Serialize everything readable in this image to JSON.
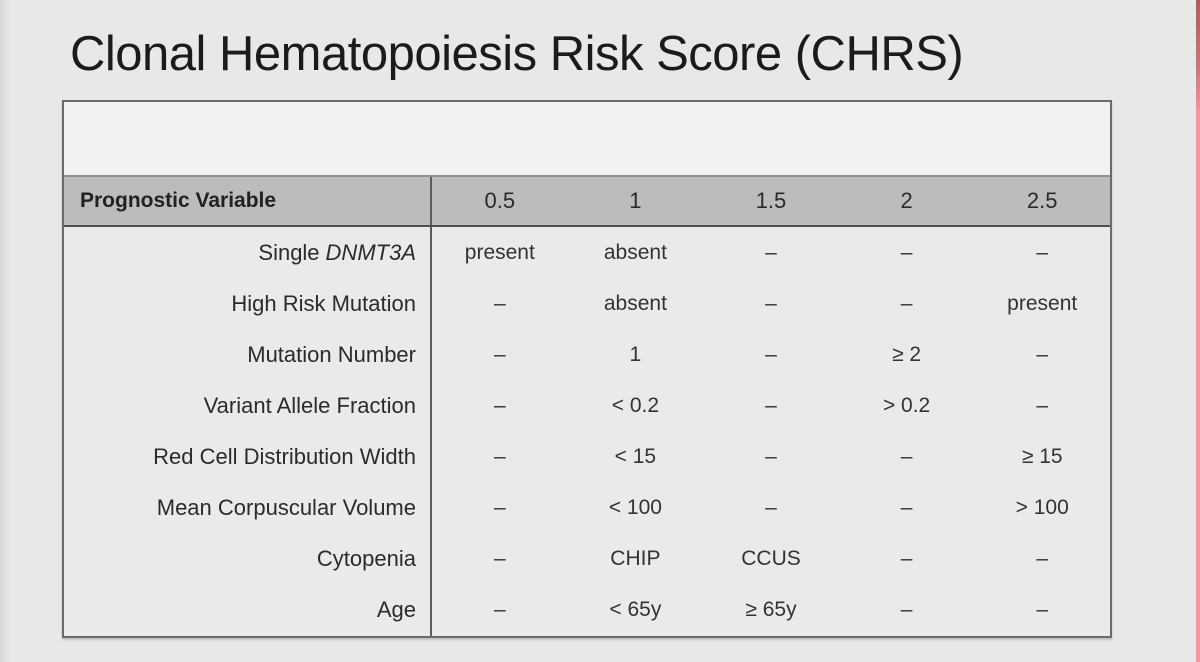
{
  "title": "Clonal Hematopoiesis Risk Score (CHRS)",
  "table": {
    "header_label": "Prognostic Variable",
    "scores": [
      "0.5",
      "1",
      "1.5",
      "2",
      "2.5"
    ],
    "rows": [
      {
        "label": "Single",
        "label_italic": "DNMT3A",
        "values": [
          "present",
          "absent",
          "–",
          "–",
          "–"
        ]
      },
      {
        "label": "High Risk Mutation",
        "label_italic": "",
        "values": [
          "–",
          "absent",
          "–",
          "–",
          "present"
        ]
      },
      {
        "label": "Mutation Number",
        "label_italic": "",
        "values": [
          "–",
          "1",
          "–",
          "≥ 2",
          "–"
        ]
      },
      {
        "label": "Variant Allele Fraction",
        "label_italic": "",
        "values": [
          "–",
          "< 0.2",
          "–",
          "> 0.2",
          "–"
        ]
      },
      {
        "label": "Red Cell Distribution Width",
        "label_italic": "",
        "values": [
          "–",
          "< 15",
          "–",
          "–",
          "≥ 15"
        ]
      },
      {
        "label": "Mean Corpuscular Volume",
        "label_italic": "",
        "values": [
          "–",
          "< 100",
          "–",
          "–",
          "> 100"
        ]
      },
      {
        "label": "Cytopenia",
        "label_italic": "",
        "values": [
          "–",
          "CHIP",
          "CCUS",
          "–",
          "–"
        ]
      },
      {
        "label": "Age",
        "label_italic": "",
        "values": [
          "–",
          "< 65y",
          "≥ 65y",
          "–",
          "–"
        ]
      }
    ]
  },
  "colors": {
    "page_background": "#e8e8e6",
    "table_body": "#eaeae9",
    "spacer_row": "#f2f2f0",
    "header_fill": "#bdbcbb",
    "border": "#6b6b6b",
    "edge_stripe_pink": "#f09aa6",
    "edge_stripe_dark": "#aa5d61"
  }
}
